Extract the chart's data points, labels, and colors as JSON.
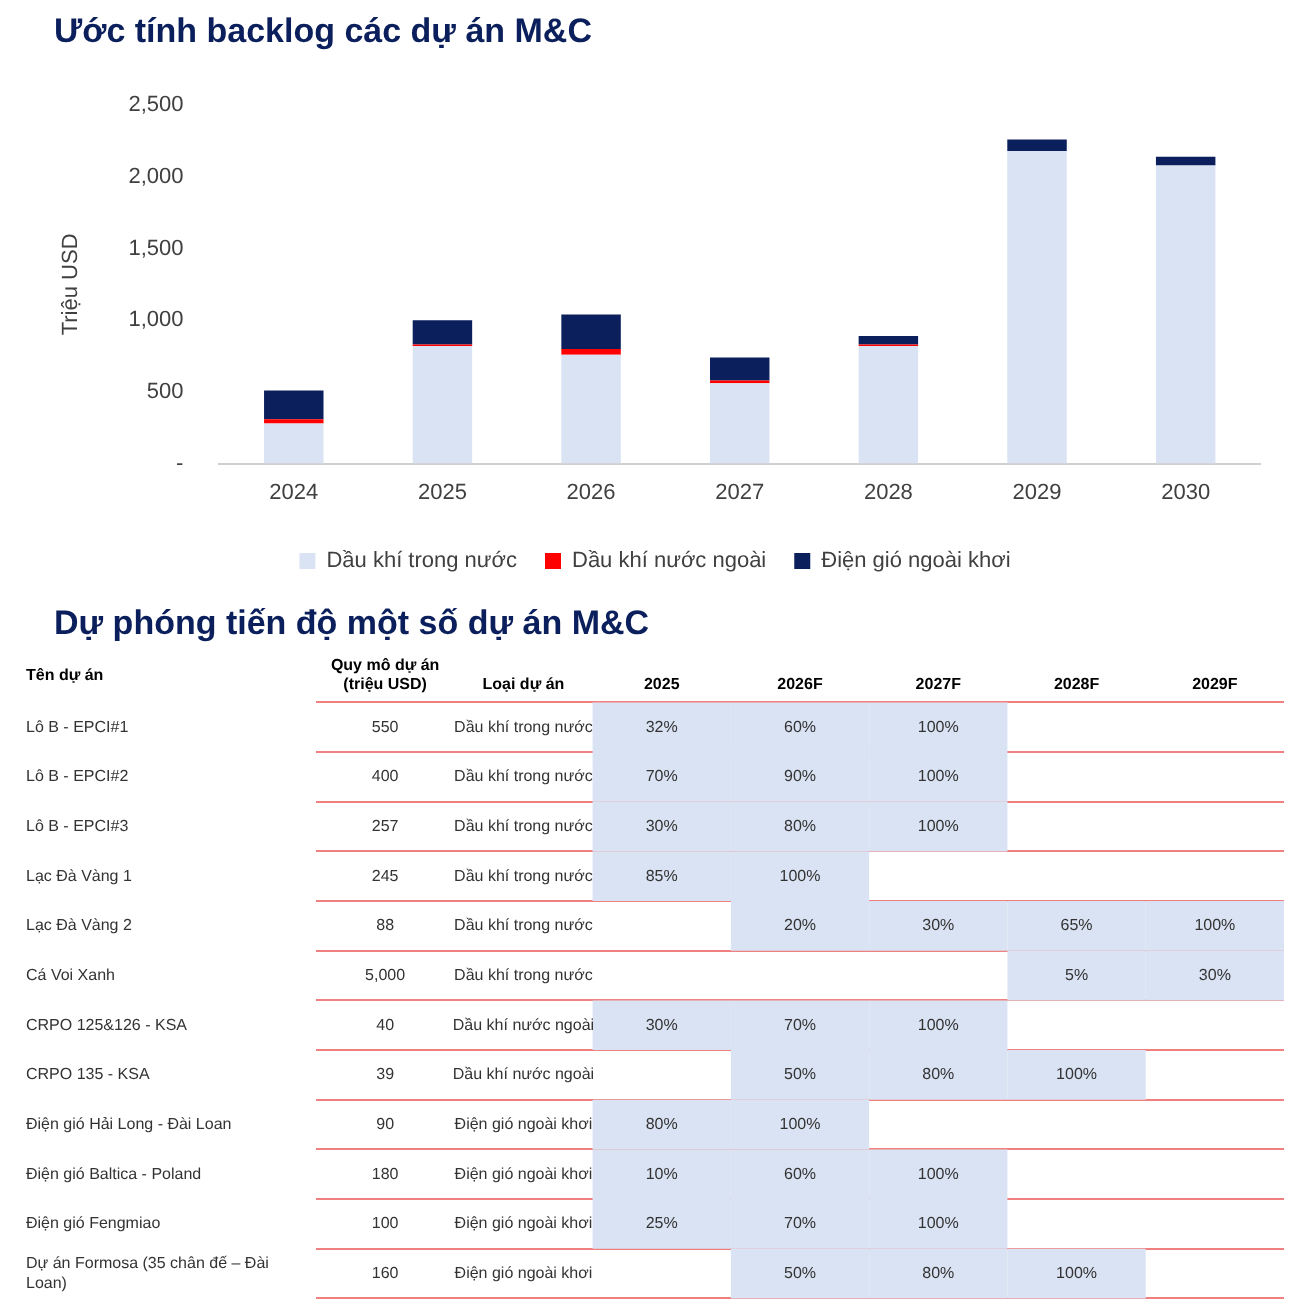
{
  "chart_data": [
    {
      "type": "bar",
      "title": "Ước tính backlog các dự án M&C",
      "ylabel": "Triệu USD",
      "categories": [
        "2024",
        "2025",
        "2026",
        "2027",
        "2028",
        "2029",
        "2030"
      ],
      "stacked": true,
      "legend": "bottom",
      "grid": false,
      "ylim": [
        0,
        2500
      ],
      "yticks": [
        {
          "value": 0,
          "label": "-"
        },
        500,
        {
          "value": 1000,
          "label": "1,000"
        },
        {
          "value": 1500,
          "label": "1,500"
        },
        {
          "value": 2000,
          "label": "2,000"
        },
        {
          "value": 2500,
          "label": "2,500"
        }
      ],
      "series": [
        {
          "name": "Dầu khí trong nước",
          "color": "#dae3f3",
          "values": [
            280,
            820,
            760,
            560,
            820,
            2180,
            2080
          ]
        },
        {
          "name": "Dầu khí nước ngoài",
          "color": "#ff0000",
          "values": [
            30,
            10,
            40,
            20,
            10,
            0,
            0
          ]
        },
        {
          "name": "Điện gió ngoài khơi",
          "color": "#0a1f5c",
          "values": [
            200,
            170,
            240,
            160,
            60,
            80,
            60
          ]
        }
      ]
    },
    {
      "type": "heatmap",
      "title": "Dự phóng tiến độ một số dự án M&C",
      "ylabel": "Tên dự án",
      "grid": "y",
      "categories": [
        "Quy mô dự án (triệu USD)",
        "Loại dự án",
        "2025",
        "2026F",
        "2027F",
        "2028F",
        "2029F"
      ],
      "colors": [
        null,
        null,
        "#dae3f3",
        "#dae3f3",
        "#dae3f3",
        "#dae3f3",
        "#dae3f3"
      ],
      "y_categories": [
        "Lô B - EPCI#1",
        "Lô B - EPCI#2",
        "Lô B - EPCI#3",
        "Lạc Đà Vàng 1",
        "Lạc Đà Vàng 2",
        "Cá Voi Xanh",
        "CRPO 125&126 - KSA",
        "CRPO 135 - KSA",
        "Điện gió Hải Long - Đài Loan",
        "Điện gió Baltica - Poland",
        "Điện gió Fengmiao",
        "Dự án Formosa (35 chân đế – Đài Loan)"
      ],
      "cells": [
        [
          null,
          null,
          null,
          null,
          null,
          null,
          null
        ],
        [
          null,
          null,
          null,
          null,
          null,
          null,
          null
        ],
        [
          null,
          null,
          null,
          null,
          null,
          null,
          null
        ],
        [
          null,
          null,
          null,
          null,
          null,
          null,
          null
        ],
        [
          null,
          null,
          null,
          null,
          null,
          null,
          null
        ],
        [
          null,
          null,
          null,
          null,
          null,
          null,
          null
        ],
        [
          null,
          null,
          null,
          null,
          null,
          null,
          null
        ],
        [
          null,
          null,
          null,
          null,
          null,
          null,
          null
        ],
        [
          null,
          null,
          null,
          null,
          null,
          null,
          null
        ],
        [
          null,
          null,
          null,
          null,
          null,
          null,
          null
        ],
        [
          null,
          null,
          null,
          null,
          null,
          null,
          null
        ],
        [
          null,
          null,
          null,
          null,
          null,
          null,
          null
        ]
      ],
      "cell_labels": [
        [
          "550",
          "Dầu khí trong nước",
          "32%",
          "60%",
          "100%",
          null,
          null
        ],
        [
          "400",
          "Dầu khí trong nước",
          "70%",
          "90%",
          "100%",
          null,
          null
        ],
        [
          "257",
          "Dầu khí trong nước",
          "30%",
          "80%",
          "100%",
          null,
          null
        ],
        [
          "245",
          "Dầu khí trong nước",
          "85%",
          "100%",
          null,
          null,
          null
        ],
        [
          "88",
          "Dầu khí trong nước",
          null,
          "20%",
          "30%",
          "65%",
          "100%"
        ],
        [
          "5,000",
          "Dầu khí trong nước",
          null,
          null,
          null,
          "5%",
          "30%"
        ],
        [
          "40",
          "Dầu khí nước ngoài",
          "30%",
          "70%",
          "100%",
          null,
          null
        ],
        [
          "39",
          "Dầu khí nước ngoài",
          null,
          "50%",
          "80%",
          "100%",
          null
        ],
        [
          "90",
          "Điện gió ngoài khơi",
          "80%",
          "100%",
          null,
          null,
          null
        ],
        [
          "180",
          "Điện gió ngoài khơi",
          "10%",
          "60%",
          "100%",
          null,
          null
        ],
        [
          "100",
          "Điện gió ngoài khơi",
          "25%",
          "70%",
          "100%",
          null,
          null
        ],
        [
          "160",
          "Điện gió ngoài khơi",
          null,
          "50%",
          "80%",
          "100%",
          null
        ]
      ]
    }
  ]
}
